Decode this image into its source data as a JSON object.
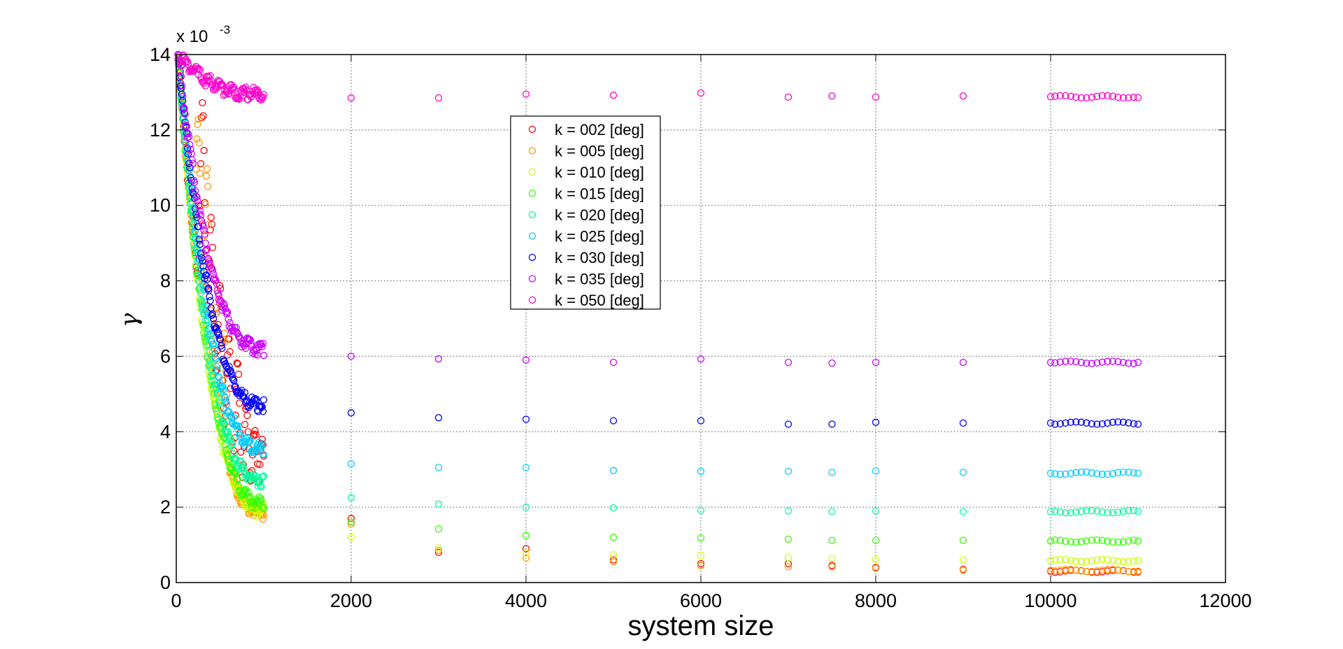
{
  "chart_data": {
    "type": "scatter",
    "title": "",
    "xlabel": "system size",
    "ylabel": "γ",
    "y_multiplier_label": "x 10",
    "y_multiplier_exponent": "-3",
    "xlim": [
      0,
      12000
    ],
    "ylim": [
      0,
      14
    ],
    "x_ticks": [
      0,
      2000,
      4000,
      6000,
      8000,
      10000,
      12000
    ],
    "y_ticks": [
      0,
      2,
      4,
      6,
      8,
      10,
      12,
      14
    ],
    "grid": true,
    "legend_position": "top-center",
    "series": [
      {
        "name": "k = 002 [deg]",
        "color": "#ff0000",
        "curve": {
          "start": [
            20,
            14.0
          ],
          "end": [
            1000,
            1.85
          ],
          "peaks": [
            [
              300,
              12.6
            ],
            [
              400,
              9.8
            ],
            [
              500,
              8.0
            ],
            [
              600,
              6.5
            ],
            [
              700,
              5.8
            ],
            [
              800,
              4.8
            ],
            [
              900,
              4.2
            ],
            [
              980,
              3.7
            ]
          ]
        },
        "points": [
          [
            2000,
            1.7
          ],
          [
            3000,
            0.8
          ],
          [
            4000,
            0.9
          ],
          [
            5000,
            0.6
          ],
          [
            6000,
            0.5
          ],
          [
            7000,
            0.5
          ],
          [
            7500,
            0.45
          ],
          [
            8000,
            0.4
          ],
          [
            9000,
            0.35
          ],
          [
            10000,
            0.3
          ],
          [
            11000,
            0.28
          ]
        ]
      },
      {
        "name": "k = 005 [deg]",
        "color": "#ff9900",
        "curve": {
          "start": [
            20,
            14.0
          ],
          "end": [
            1000,
            1.85
          ],
          "peaks": [
            [
              250,
              12.2
            ],
            [
              350,
              11.0
            ],
            [
              450,
              7.4
            ],
            [
              550,
              6.5
            ]
          ]
        },
        "points": [
          [
            2000,
            1.55
          ],
          [
            3000,
            0.85
          ],
          [
            4000,
            0.65
          ],
          [
            5000,
            0.55
          ],
          [
            6000,
            0.45
          ],
          [
            7000,
            0.42
          ],
          [
            7500,
            0.42
          ],
          [
            8000,
            0.38
          ],
          [
            9000,
            0.33
          ],
          [
            10000,
            0.32
          ],
          [
            11000,
            0.3
          ]
        ]
      },
      {
        "name": "k = 010 [deg]",
        "color": "#ccff00",
        "curve": {
          "start": [
            20,
            14.0
          ],
          "end": [
            1000,
            1.9
          ],
          "peaks": []
        },
        "points": [
          [
            2000,
            1.2
          ],
          [
            3000,
            0.92
          ],
          [
            4000,
            0.78
          ],
          [
            5000,
            0.74
          ],
          [
            6000,
            0.72
          ],
          [
            7000,
            0.66
          ],
          [
            7500,
            0.64
          ],
          [
            8000,
            0.62
          ],
          [
            9000,
            0.6
          ],
          [
            10000,
            0.58
          ],
          [
            11000,
            0.58
          ]
        ]
      },
      {
        "name": "k = 015 [deg]",
        "color": "#33ff00",
        "curve": {
          "start": [
            20,
            14.0
          ],
          "end": [
            1000,
            2.1
          ],
          "peaks": []
        },
        "points": [
          [
            2000,
            1.6
          ],
          [
            3000,
            1.42
          ],
          [
            4000,
            1.25
          ],
          [
            5000,
            1.2
          ],
          [
            6000,
            1.18
          ],
          [
            7000,
            1.15
          ],
          [
            7500,
            1.12
          ],
          [
            8000,
            1.12
          ],
          [
            9000,
            1.12
          ],
          [
            10000,
            1.1
          ],
          [
            11000,
            1.1
          ]
        ]
      },
      {
        "name": "k = 020 [deg]",
        "color": "#00ff99",
        "curve": {
          "start": [
            20,
            14.0
          ],
          "end": [
            1000,
            2.7
          ],
          "peaks": []
        },
        "points": [
          [
            2000,
            2.25
          ],
          [
            3000,
            2.08
          ],
          [
            4000,
            2.0
          ],
          [
            5000,
            1.98
          ],
          [
            6000,
            1.92
          ],
          [
            7000,
            1.9
          ],
          [
            7500,
            1.88
          ],
          [
            8000,
            1.9
          ],
          [
            9000,
            1.88
          ],
          [
            10000,
            1.88
          ],
          [
            11000,
            1.88
          ]
        ]
      },
      {
        "name": "k = 025 [deg]",
        "color": "#00ccff",
        "curve": {
          "start": [
            20,
            14.0
          ],
          "end": [
            1000,
            3.55
          ],
          "peaks": []
        },
        "points": [
          [
            2000,
            3.15
          ],
          [
            3000,
            3.05
          ],
          [
            4000,
            3.05
          ],
          [
            5000,
            2.97
          ],
          [
            6000,
            2.95
          ],
          [
            7000,
            2.95
          ],
          [
            7500,
            2.92
          ],
          [
            8000,
            2.96
          ],
          [
            9000,
            2.92
          ],
          [
            10000,
            2.9
          ],
          [
            11000,
            2.9
          ]
        ]
      },
      {
        "name": "k = 030 [deg]",
        "color": "#0000ff",
        "curve": {
          "start": [
            20,
            14.0
          ],
          "end": [
            1000,
            4.7
          ],
          "peaks": []
        },
        "points": [
          [
            2000,
            4.5
          ],
          [
            3000,
            4.37
          ],
          [
            4000,
            4.33
          ],
          [
            5000,
            4.29
          ],
          [
            6000,
            4.29
          ],
          [
            7000,
            4.2
          ],
          [
            7500,
            4.2
          ],
          [
            8000,
            4.25
          ],
          [
            9000,
            4.23
          ],
          [
            10000,
            4.23
          ],
          [
            11000,
            4.2
          ]
        ]
      },
      {
        "name": "k = 035 [deg]",
        "color": "#cc00ff",
        "curve": {
          "start": [
            20,
            14.0
          ],
          "end": [
            1000,
            6.2
          ],
          "peaks": []
        },
        "points": [
          [
            2000,
            6.0
          ],
          [
            3000,
            5.93
          ],
          [
            4000,
            5.9
          ],
          [
            5000,
            5.84
          ],
          [
            6000,
            5.93
          ],
          [
            7000,
            5.84
          ],
          [
            7500,
            5.82
          ],
          [
            8000,
            5.84
          ],
          [
            9000,
            5.84
          ],
          [
            10000,
            5.84
          ],
          [
            11000,
            5.84
          ]
        ]
      },
      {
        "name": "k = 050 [deg]",
        "color": "#ff00cc",
        "curve": {
          "start": [
            20,
            14.0
          ],
          "end": [
            1000,
            12.95
          ],
          "peaks": []
        },
        "points": [
          [
            2000,
            12.85
          ],
          [
            3000,
            12.85
          ],
          [
            4000,
            12.95
          ],
          [
            5000,
            12.92
          ],
          [
            6000,
            12.98
          ],
          [
            7000,
            12.87
          ],
          [
            7500,
            12.9
          ],
          [
            8000,
            12.87
          ],
          [
            9000,
            12.9
          ],
          [
            10000,
            12.88
          ],
          [
            11000,
            12.86
          ]
        ]
      }
    ]
  }
}
